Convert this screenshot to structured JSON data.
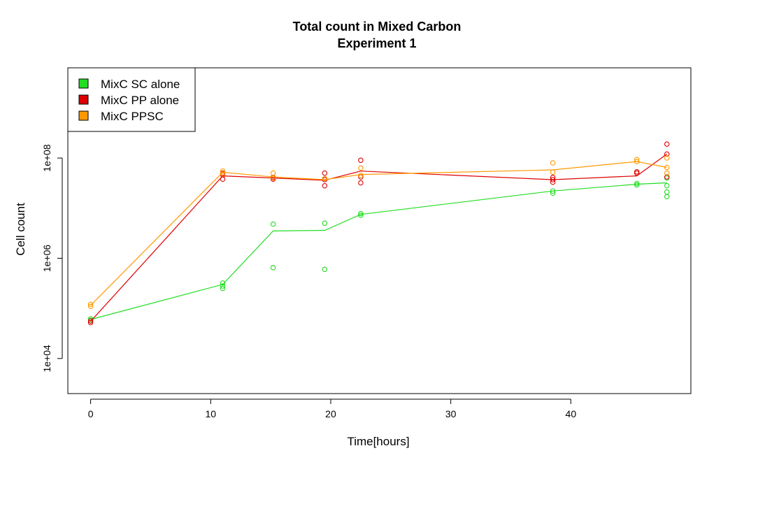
{
  "chart_data": {
    "type": "line",
    "title": "Total count in Mixed Carbon",
    "subtitle": "Experiment 1",
    "xlabel": "Time[hours]",
    "ylabel": "Cell count",
    "y_scale": "log10",
    "xlim": [
      -1.9,
      50
    ],
    "ylim_log10": [
      3.3,
      9.8
    ],
    "x_ticks": [
      0,
      10,
      20,
      30,
      40
    ],
    "x_tick_labels": [
      "0",
      "10",
      "20",
      "30",
      "40"
    ],
    "y_ticks": [
      10000,
      1000000,
      100000000
    ],
    "y_tick_labels": [
      "1e+04",
      "1e+06",
      "1e+08"
    ],
    "grid": false,
    "legend_position": "top-left",
    "series": [
      {
        "name": "MixC SC alone",
        "color": "#22dd22",
        "line": {
          "x": [
            0,
            11,
            15.2,
            19.5,
            22.5,
            38.5,
            45.5,
            48
          ],
          "y": [
            60000,
            300000,
            3500000,
            3600000,
            7500000,
            22000000,
            30000000,
            32000000
          ]
        },
        "points": {
          "x": [
            0,
            0,
            11,
            11,
            11,
            15.2,
            15.2,
            19.5,
            19.5,
            22.5,
            22.5,
            38.5,
            38.5,
            45.5,
            45.5,
            48,
            48,
            48,
            48
          ],
          "y": [
            58000,
            62000,
            250000,
            280000,
            320000,
            650000,
            4800000,
            600000,
            5000000,
            7200000,
            7800000,
            20000000,
            22000000,
            29000000,
            31000000,
            17000000,
            21000000,
            28000000,
            40000000
          ]
        }
      },
      {
        "name": "MixC PP alone",
        "color": "#dd0000",
        "line": {
          "x": [
            0,
            11,
            15.2,
            19.5,
            22.5,
            38.5,
            45.5,
            48
          ],
          "y": [
            55000,
            44000000,
            40000000,
            36000000,
            55000000,
            37000000,
            44000000,
            120000000
          ]
        },
        "points": {
          "x": [
            0,
            0,
            11,
            11,
            11,
            15.2,
            15.2,
            19.5,
            19.5,
            19.5,
            22.5,
            22.5,
            22.5,
            38.5,
            38.5,
            38.5,
            45.5,
            45.5,
            48,
            48,
            48
          ],
          "y": [
            52000,
            56000,
            38000000,
            46000000,
            50000000,
            38000000,
            41000000,
            28000000,
            37000000,
            50000000,
            32000000,
            42000000,
            90000000,
            33000000,
            37000000,
            41000000,
            50000000,
            53000000,
            42000000,
            120000000,
            190000000
          ]
        }
      },
      {
        "name": "MixC PPSC",
        "color": "#ff9900",
        "line": {
          "x": [
            0,
            11,
            15.2,
            19.5,
            22.5,
            38.5,
            45.5,
            48
          ],
          "y": [
            115000,
            52000000,
            42000000,
            37000000,
            47000000,
            58000000,
            85000000,
            65000000
          ]
        },
        "points": {
          "x": [
            0,
            0,
            11,
            11,
            15.2,
            15.2,
            19.5,
            22.5,
            22.5,
            38.5,
            38.5,
            45.5,
            45.5,
            48,
            48,
            48
          ],
          "y": [
            110000,
            120000,
            48000000,
            55000000,
            40000000,
            50000000,
            39000000,
            45000000,
            63000000,
            52000000,
            80000000,
            85000000,
            93000000,
            50000000,
            65000000,
            100000000
          ]
        }
      }
    ]
  }
}
